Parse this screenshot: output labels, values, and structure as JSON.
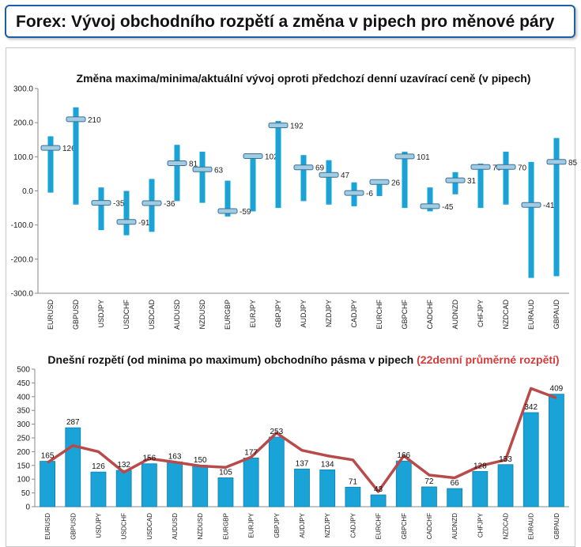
{
  "header": {
    "title": "Forex: Vývoj obchodního rozpětí a změna v pipech pro měnové páry"
  },
  "colors": {
    "bar": "#1aa3d6",
    "bar_dark": "#0e7fb0",
    "line": "#b94a4a",
    "highlight": "#d63b3b",
    "axis": "#888888"
  },
  "chart_data": [
    {
      "type": "bar",
      "title": "Změna maxima/minima/aktuální vývoj oproti předchozí denní uzavírací ceně (v pipech)",
      "categories": [
        "EURUSD",
        "GBPUSD",
        "USDJPY",
        "USDCHF",
        "USDCAD",
        "AUDUSD",
        "NZDUSD",
        "EURGBP",
        "EURJPY",
        "GBPJPY",
        "AUDJPY",
        "NZDJPY",
        "CADJPY",
        "EURCHF",
        "GBPCHF",
        "CADCHF",
        "AUDNZD",
        "CHFJPY",
        "NZDCAD",
        "EURAUD",
        "GBPAUD"
      ],
      "high": [
        160,
        245,
        10,
        0,
        35,
        135,
        115,
        30,
        110,
        205,
        105,
        90,
        25,
        30,
        115,
        10,
        55,
        80,
        115,
        85,
        155
      ],
      "low": [
        -5,
        -40,
        -115,
        -130,
        -120,
        -30,
        -35,
        -75,
        -60,
        -50,
        -30,
        -40,
        -45,
        -15,
        -50,
        -60,
        -10,
        -50,
        -40,
        -255,
        -250
      ],
      "current": [
        126,
        210,
        -35,
        -91,
        -36,
        81,
        63,
        -59,
        102,
        192,
        69,
        47,
        -6,
        26,
        101,
        -45,
        31,
        70,
        70,
        -41,
        85
      ],
      "ylim": [
        -300,
        300
      ],
      "yticks": [
        "300.0",
        "200.0",
        "100.0",
        "0.0",
        "-100.0",
        "-200.0",
        "-300.0"
      ]
    },
    {
      "type": "bar",
      "title": "Dnešní rozpětí (od minima po maximum) obchodního pásma v pipech",
      "title_highlight": "(22denní průměrné rozpětí)",
      "categories": [
        "EURUSD",
        "GBPUSD",
        "USDJPY",
        "USDCHF",
        "USDCAD",
        "AUDUSD",
        "NZDUSD",
        "EURGBP",
        "EURJPY",
        "GBPJPY",
        "AUDJPY",
        "NZDJPY",
        "CADJPY",
        "EURCHF",
        "GBPCHF",
        "CADCHF",
        "AUDNZD",
        "CHFJPY",
        "NZDCAD",
        "EURAUD",
        "GBPAUD"
      ],
      "values": [
        165,
        287,
        126,
        132,
        156,
        163,
        150,
        105,
        177,
        253,
        137,
        134,
        71,
        43,
        166,
        72,
        66,
        128,
        153,
        342,
        409
      ],
      "average": [
        160,
        222,
        200,
        125,
        175,
        162,
        148,
        143,
        180,
        268,
        205,
        185,
        170,
        55,
        185,
        115,
        105,
        148,
        170,
        430,
        395
      ],
      "ylim": [
        0,
        500
      ],
      "yticks": [
        "500",
        "450",
        "400",
        "350",
        "300",
        "250",
        "200",
        "150",
        "100",
        "50",
        "0"
      ]
    }
  ]
}
